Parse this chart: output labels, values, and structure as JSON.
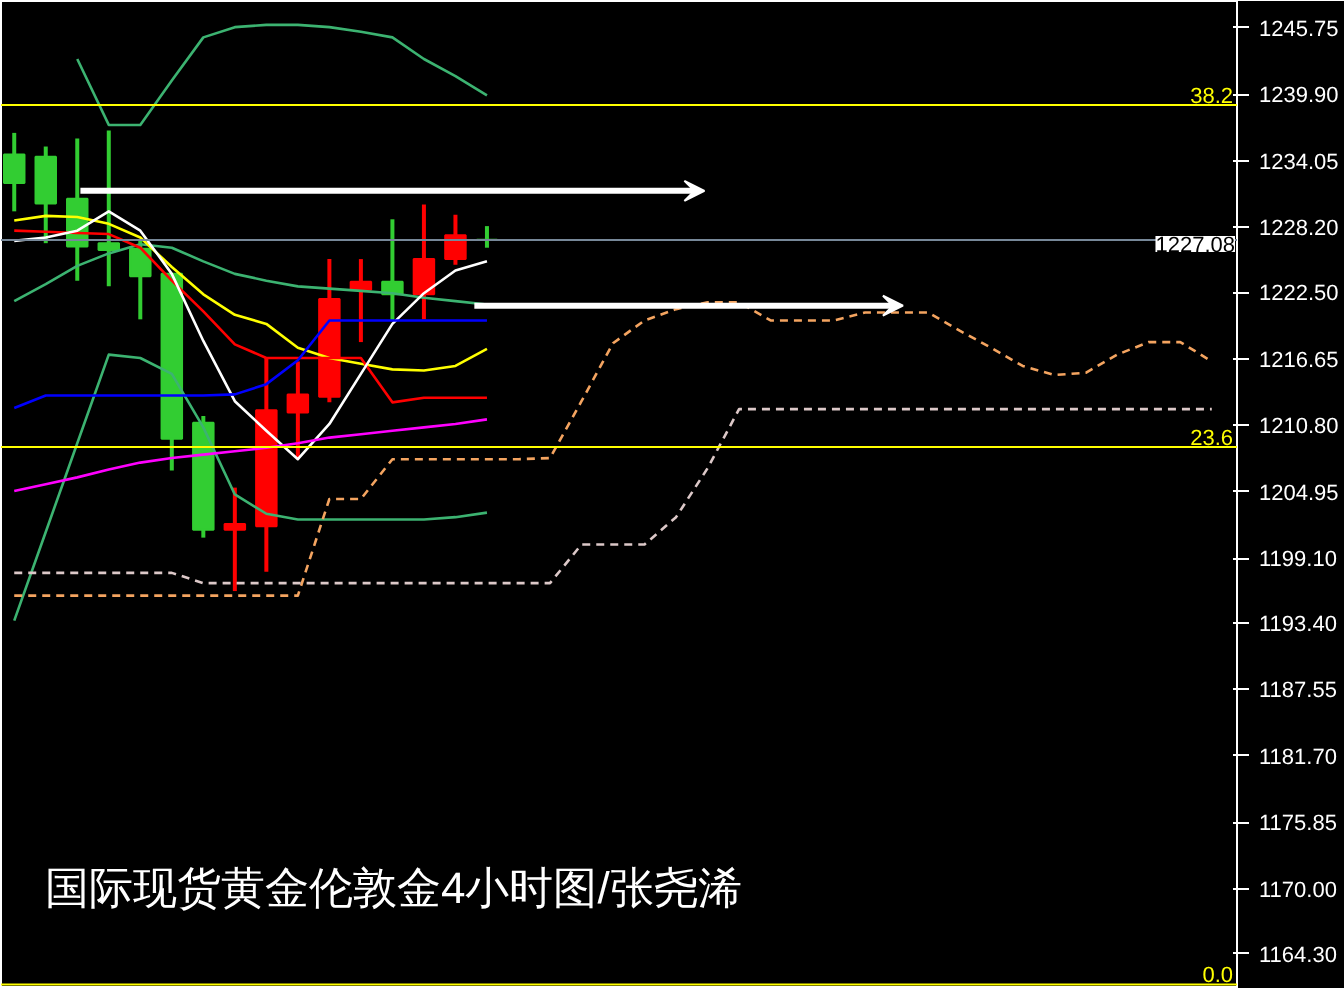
{
  "chart_data": {
    "type": "candlestick",
    "title": "国际现货黄金伦敦金4小时图/张尧浠",
    "categories": [
      null,
      null,
      null,
      null,
      null,
      null,
      null,
      null,
      null,
      null,
      null,
      null,
      null,
      null,
      null,
      null,
      null,
      null,
      null,
      null,
      null,
      null,
      null,
      null,
      null,
      null,
      null,
      null,
      null,
      null,
      null,
      null,
      null,
      null,
      null,
      null,
      null,
      null,
      null,
      null
    ],
    "ohlc": [
      [
        1234.6,
        1236.5,
        1229.6,
        1232.1
      ],
      [
        1234.4,
        1235.3,
        1226.8,
        1230.3
      ],
      [
        1230.7,
        1236.0,
        1223.5,
        1226.5
      ],
      [
        1226.8,
        1236.7,
        1223.0,
        1226.2
      ],
      [
        1226.3,
        1227.0,
        1220.1,
        1223.9
      ],
      [
        1224.1,
        1224.1,
        1206.8,
        1209.6
      ],
      [
        1211.0,
        1211.6,
        1200.9,
        1201.6
      ],
      [
        1201.6,
        1205.3,
        1196.2,
        1202.1
      ],
      [
        1201.9,
        1216.7,
        1197.9,
        1212.1
      ],
      [
        1211.9,
        1216.4,
        1207.8,
        1213.5
      ],
      [
        1213.3,
        1225.4,
        1212.8,
        1221.9
      ],
      [
        1222.7,
        1225.4,
        1218.1,
        1223.4
      ],
      [
        1223.4,
        1228.9,
        1220.0,
        1222.3
      ],
      [
        1222.3,
        1230.2,
        1220.1,
        1225.4
      ],
      [
        1225.4,
        1229.3,
        1224.9,
        1227.5
      ],
      [
        1227.1,
        1228.3,
        1226.4,
        1227.1
      ],
      null,
      null,
      null,
      null,
      null,
      null,
      null,
      null,
      null,
      null,
      null,
      null,
      null,
      null,
      null,
      null,
      null,
      null,
      null,
      null,
      null,
      null,
      null,
      null
    ],
    "colors": [
      "#32cd32",
      "#32cd32",
      "#32cd32",
      "#32cd32",
      "#32cd32",
      "#32cd32",
      "#32cd32",
      "#ff0000",
      "#ff0000",
      "#ff0000",
      "#ff0000",
      "#ff0000",
      "#32cd32",
      "#ff0000",
      "#ff0000",
      "#32cd32",
      null,
      null,
      null,
      null,
      null,
      null,
      null,
      null,
      null,
      null,
      null,
      null,
      null,
      null,
      null,
      null,
      null,
      null,
      null,
      null,
      null,
      null,
      null,
      null
    ],
    "series": [
      {
        "type": "line",
        "color": "#3cb371",
        "values": [
          null,
          null,
          1243.0,
          1237.2,
          1237.2,
          1241.1,
          1244.9,
          1245.8,
          1246.0,
          1246.0,
          1245.8,
          1245.4,
          1244.9,
          1243.0,
          1241.5,
          1239.8,
          null,
          null,
          null,
          null,
          null,
          null,
          null,
          null,
          null,
          null,
          null,
          null,
          null,
          null,
          null,
          null,
          null,
          null,
          null,
          null,
          null,
          null,
          null,
          null
        ]
      },
      {
        "type": "line",
        "color": "#3cb371",
        "values": [
          1221.7,
          1223.2,
          1224.8,
          1225.9,
          1226.7,
          1226.4,
          1225.2,
          1224.1,
          1223.5,
          1223.0,
          1222.8,
          1222.6,
          1222.4,
          1222.0,
          1221.7,
          1221.4,
          null,
          null,
          null,
          null,
          null,
          null,
          null,
          null,
          null,
          null,
          null,
          null,
          null,
          null,
          null,
          null,
          null,
          null,
          null,
          null,
          null,
          null,
          null,
          null
        ]
      },
      {
        "type": "line",
        "color": "#3cb371",
        "values": [
          1193.6,
          1201.4,
          1209.2,
          1217.0,
          1216.7,
          1215.3,
          1210.6,
          1204.7,
          1203.0,
          1202.5,
          1202.5,
          1202.5,
          1202.5,
          1202.5,
          1202.7,
          1203.1,
          null,
          null,
          null,
          null,
          null,
          null,
          null,
          null,
          null,
          null,
          null,
          null,
          null,
          null,
          null,
          null,
          null,
          null,
          null,
          null,
          null,
          null,
          null,
          null
        ]
      },
      {
        "type": "line",
        "color": "#ffff00",
        "values": [
          1228.8,
          1229.2,
          1229.1,
          1228.5,
          1227.3,
          1224.7,
          1222.3,
          1220.5,
          1219.7,
          1217.6,
          1216.7,
          1216.2,
          1215.7,
          1215.6,
          1216.0,
          1217.5,
          null,
          null,
          null,
          null,
          null,
          null,
          null,
          null,
          null,
          null,
          null,
          null,
          null,
          null,
          null,
          null,
          null,
          null,
          null,
          null,
          null,
          null,
          null,
          null
        ]
      },
      {
        "type": "line",
        "color": "#ff0000",
        "values": [
          1227.9,
          1227.8,
          1227.7,
          1227.6,
          1226.4,
          1223.5,
          1220.8,
          1217.9,
          1216.7,
          1216.7,
          1216.7,
          1216.7,
          1212.8,
          1213.2,
          1213.2,
          1213.2,
          null,
          null,
          null,
          null,
          null,
          null,
          null,
          null,
          null,
          null,
          null,
          null,
          null,
          null,
          null,
          null,
          null,
          null,
          null,
          null,
          null,
          null,
          null,
          null
        ]
      },
      {
        "type": "line",
        "color": "#ffffff",
        "values": [
          1227.0,
          1227.3,
          1227.9,
          1229.6,
          1227.9,
          1224.1,
          1218.2,
          1212.9,
          1210.3,
          1207.8,
          1210.9,
          1215.3,
          1219.7,
          1222.4,
          1224.4,
          1225.2,
          null,
          null,
          null,
          null,
          null,
          null,
          null,
          null,
          null,
          null,
          null,
          null,
          null,
          null,
          null,
          null,
          null,
          null,
          null,
          null,
          null,
          null,
          null,
          null
        ]
      },
      {
        "type": "line",
        "color": "#0000ff",
        "values": [
          1212.3,
          1213.4,
          1213.4,
          1213.4,
          1213.4,
          1213.4,
          1213.4,
          1213.5,
          1214.4,
          1216.5,
          1220.0,
          1220.0,
          1220.0,
          1220.0,
          1220.0,
          1220.0,
          null,
          null,
          null,
          null,
          null,
          null,
          null,
          null,
          null,
          null,
          null,
          null,
          null,
          null,
          null,
          null,
          null,
          null,
          null,
          null,
          null,
          null,
          null,
          null
        ]
      },
      {
        "type": "line",
        "color": "#ff00ff",
        "values": [
          1205.0,
          1205.6,
          1206.2,
          1206.9,
          1207.5,
          1207.9,
          1208.2,
          1208.5,
          1208.8,
          1209.2,
          1209.7,
          1210.0,
          1210.3,
          1210.6,
          1210.9,
          1211.3,
          null,
          null,
          null,
          null,
          null,
          null,
          null,
          null,
          null,
          null,
          null,
          null,
          null,
          null,
          null,
          null,
          null,
          null,
          null,
          null,
          null,
          null,
          null,
          null
        ]
      },
      {
        "type": "line",
        "color": "#f4a460",
        "line_style": "dashed",
        "values": [
          1195.8,
          1195.8,
          1195.8,
          1195.8,
          1195.8,
          1195.8,
          1195.8,
          1195.8,
          1195.8,
          1195.8,
          1204.3,
          1204.3,
          1207.8,
          1207.8,
          1207.8,
          1207.8,
          1207.8,
          1207.9,
          1212.9,
          1218.0,
          1220.0,
          1221.0,
          1221.6,
          1221.6,
          1220.0,
          1220.0,
          1220.0,
          1220.7,
          1220.7,
          1220.7,
          1219.1,
          1217.6,
          1216.0,
          1215.2,
          1215.4,
          1217.0,
          1218.1,
          1218.1,
          1216.4,
          null
        ]
      },
      {
        "type": "line",
        "color": "#dcc8c8",
        "line_style": "dashed",
        "values": [
          1197.8,
          1197.8,
          1197.8,
          1197.8,
          1197.8,
          1197.8,
          1196.9,
          1196.9,
          1196.9,
          1196.9,
          1196.9,
          1196.9,
          1196.9,
          1196.9,
          1196.9,
          1196.9,
          1196.9,
          1196.9,
          1200.3,
          1200.3,
          1200.3,
          1202.7,
          1207.0,
          1212.2,
          1212.2,
          1212.2,
          1212.2,
          1212.2,
          1212.2,
          1212.2,
          1212.2,
          1212.2,
          1212.2,
          1212.2,
          1212.2,
          1212.2,
          1212.2,
          1212.2,
          1212.2,
          null
        ]
      }
    ],
    "ylim": [
      1161.2,
      1248.1
    ],
    "yticks": [
      1245.75,
      {
        "value": 1239.9,
        "label": "1239.90"
      },
      1234.05,
      {
        "value": 1228.2,
        "label": "1228.20"
      },
      {
        "value": 1222.5,
        "label": "1222.50"
      },
      1216.65,
      {
        "value": 1210.8,
        "label": "1210.80"
      },
      1204.95,
      {
        "value": 1199.1,
        "label": "1199.10"
      },
      {
        "value": 1193.4,
        "label": "1193.40"
      },
      1187.55,
      {
        "value": 1181.7,
        "label": "1181.70"
      },
      1175.85,
      {
        "value": 1170.0,
        "label": "1170.00"
      },
      {
        "value": 1164.3,
        "label": "1164.30"
      }
    ],
    "ref_lines": [
      {
        "axis": "y",
        "value": 1238.95,
        "color": "#ffff00"
      },
      {
        "axis": "y",
        "value": 1208.88,
        "color": "#ffff00"
      },
      {
        "axis": "y",
        "value": 1161.6,
        "color": "#ffff00"
      },
      {
        "axis": "y",
        "value": 1227.08,
        "label": "1227.08",
        "color": "#778899"
      }
    ],
    "annotations": [
      {
        "text": "38.2",
        "y": 1238.95
      },
      {
        "text": "23.6",
        "y": 1208.88
      },
      {
        "text": "0.0",
        "y": 1161.6
      }
    ],
    "tick_labels": "y",
    "grid": false
  }
}
